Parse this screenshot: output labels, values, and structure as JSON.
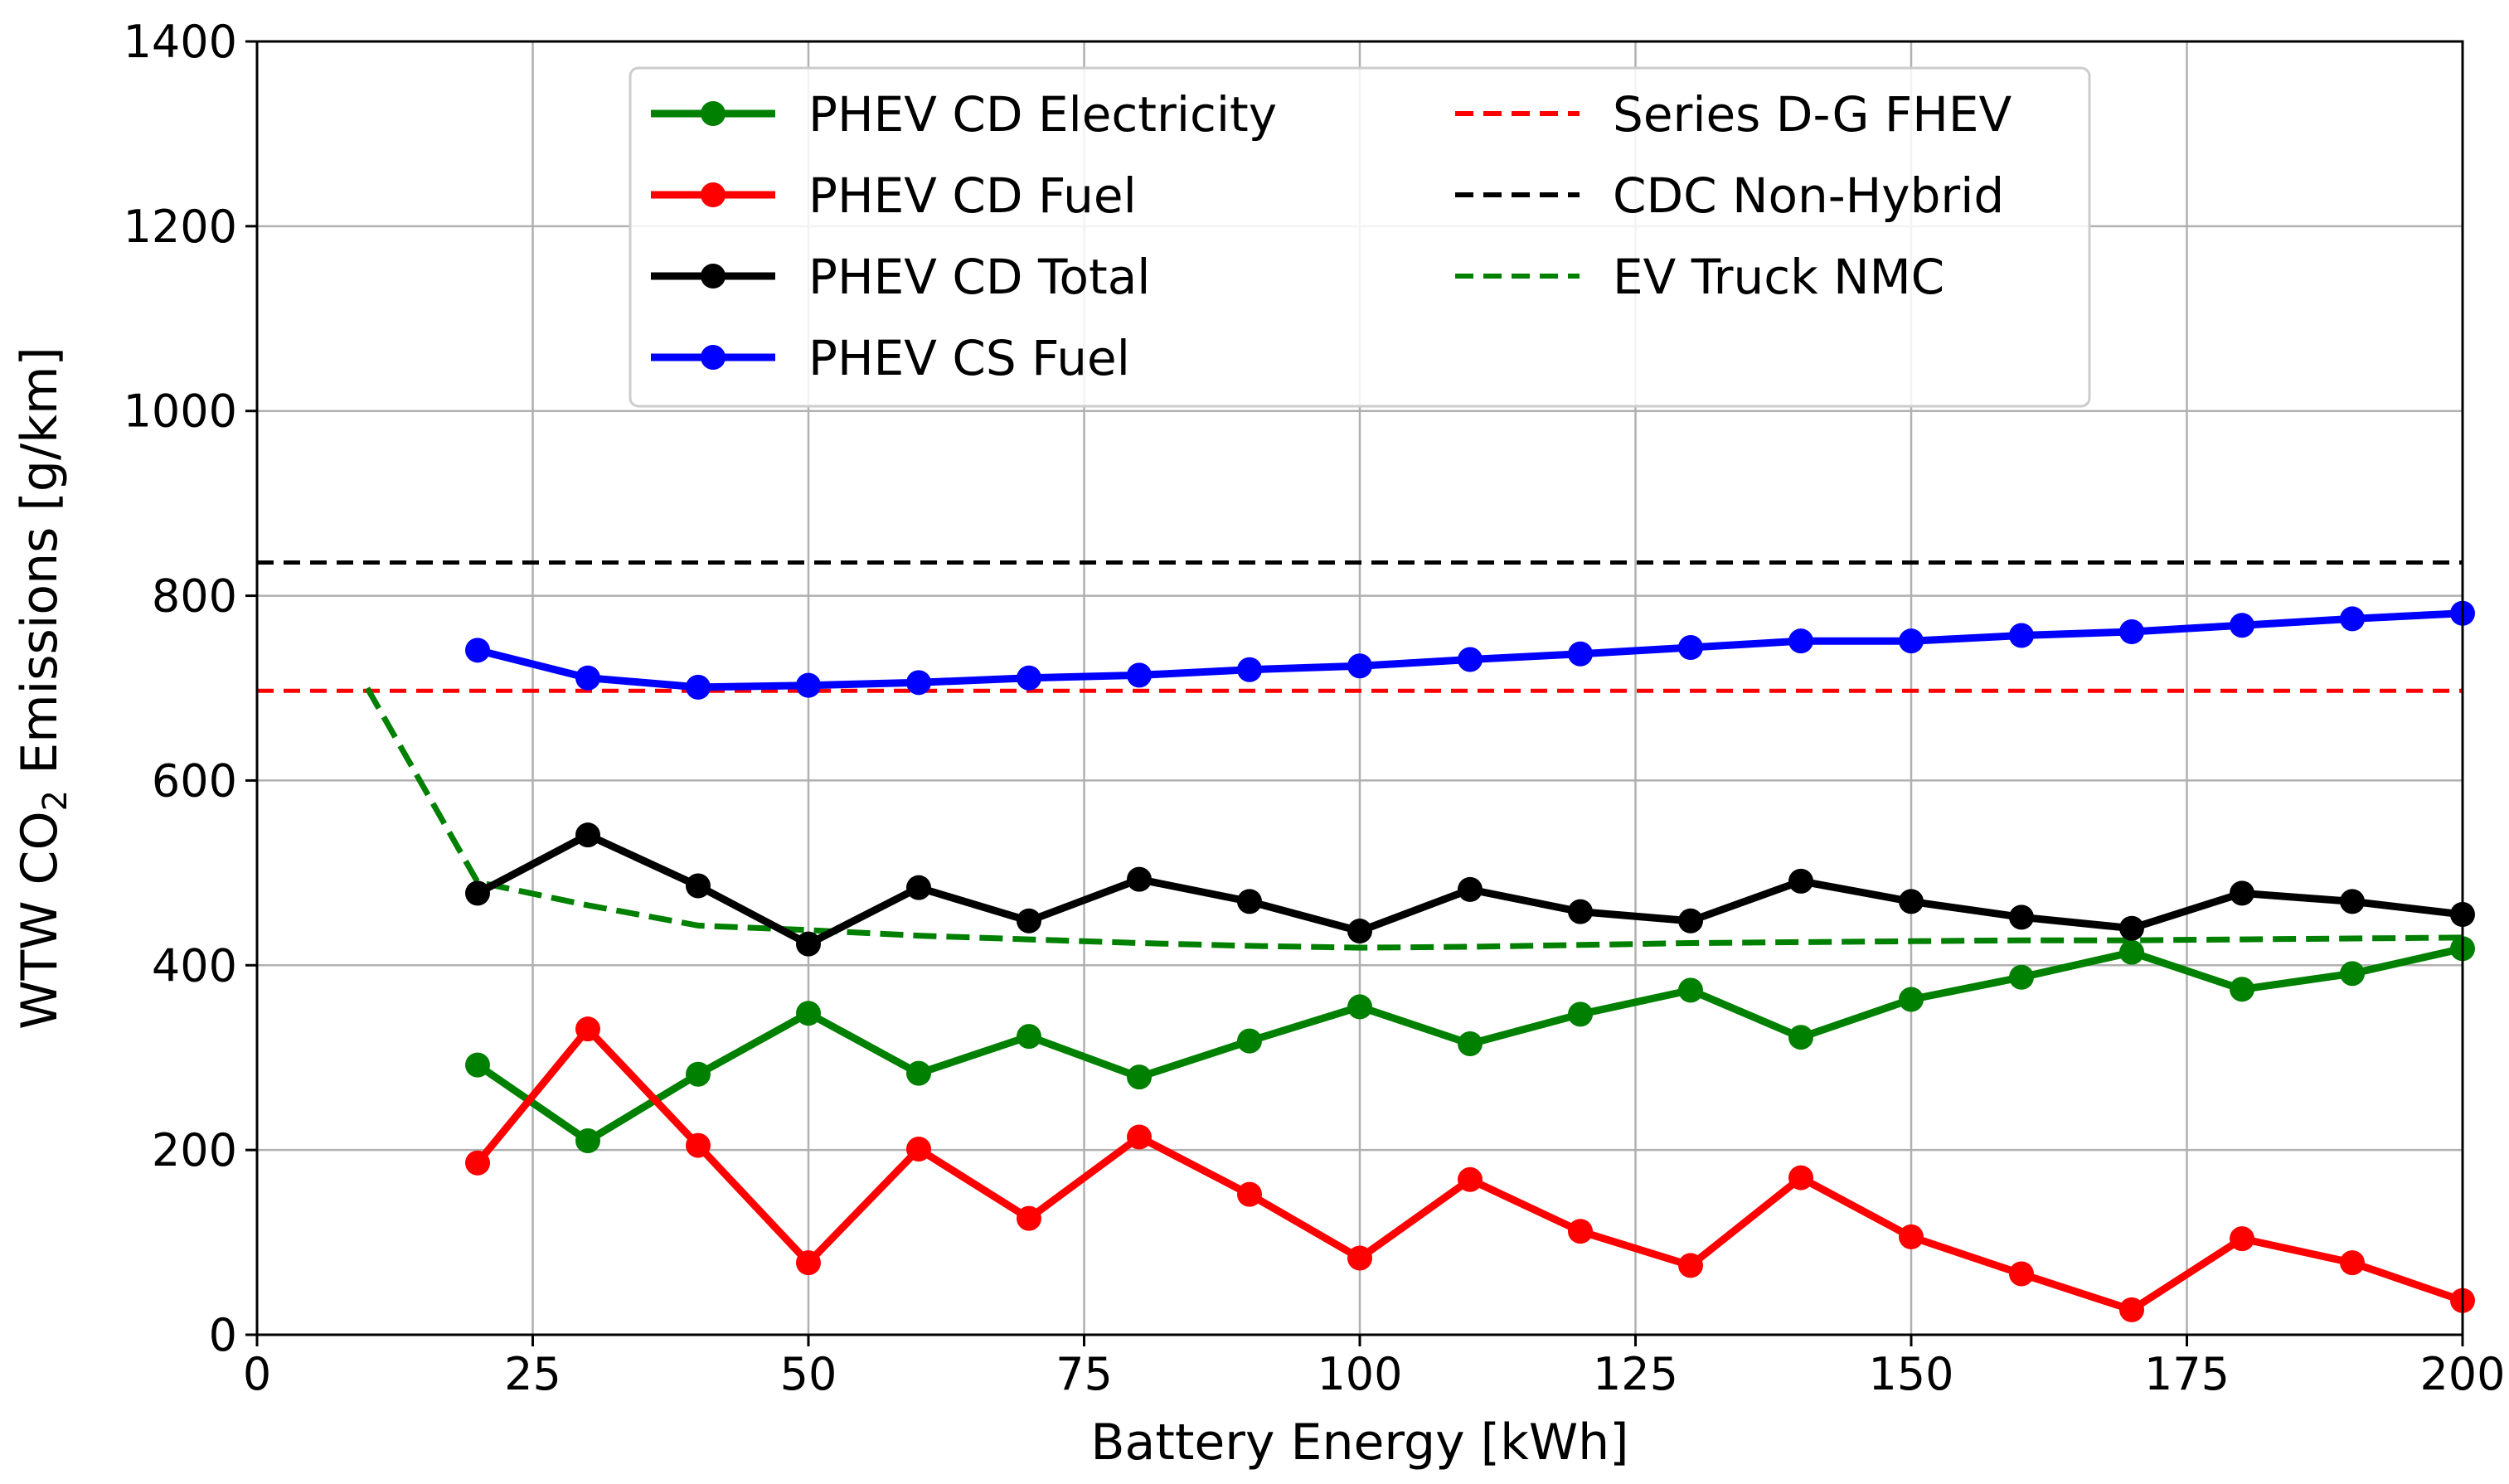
{
  "chart_data": {
    "type": "line",
    "title": "",
    "xlabel": "Battery Energy [kWh]",
    "ylabel": {
      "prefix": "WTW CO",
      "subscript": "2",
      "suffix": " Emissions [g/km]"
    },
    "xlim": [
      0,
      200
    ],
    "ylim": [
      0,
      1400
    ],
    "xticks": [
      0,
      25,
      50,
      75,
      100,
      125,
      150,
      175,
      200
    ],
    "yticks": [
      0,
      200,
      400,
      600,
      800,
      1000,
      1200,
      1400
    ],
    "grid": true,
    "legend_position": "upper center",
    "series": [
      {
        "name": "PHEV CD Electricity",
        "color": "#008000",
        "style": "solid-marker",
        "x": [
          20,
          30,
          40,
          50,
          60,
          70,
          80,
          90,
          100,
          110,
          120,
          130,
          140,
          150,
          160,
          170,
          180,
          190,
          200
        ],
        "y": [
          292,
          210,
          282,
          348,
          283,
          323,
          279,
          318,
          355,
          315,
          347,
          373,
          322,
          363,
          387,
          414,
          374,
          391,
          418
        ]
      },
      {
        "name": "PHEV CD Fuel",
        "color": "#ff0000",
        "style": "solid-marker",
        "x": [
          20,
          30,
          40,
          50,
          60,
          70,
          80,
          90,
          100,
          110,
          120,
          130,
          140,
          150,
          160,
          170,
          180,
          190,
          200
        ],
        "y": [
          186,
          331,
          205,
          78,
          201,
          126,
          214,
          152,
          83,
          168,
          112,
          75,
          170,
          106,
          66,
          27,
          104,
          78,
          37
        ]
      },
      {
        "name": "PHEV CD Total",
        "color": "#000000",
        "style": "solid-marker",
        "x": [
          20,
          30,
          40,
          50,
          60,
          70,
          80,
          90,
          100,
          110,
          120,
          130,
          140,
          150,
          160,
          170,
          180,
          190,
          200
        ],
        "y": [
          478,
          541,
          486,
          423,
          484,
          448,
          493,
          469,
          437,
          482,
          458,
          448,
          491,
          469,
          452,
          440,
          478,
          469,
          455
        ]
      },
      {
        "name": "PHEV CS Fuel",
        "color": "#0000ff",
        "style": "solid-marker",
        "x": [
          20,
          30,
          40,
          50,
          60,
          70,
          80,
          90,
          100,
          110,
          120,
          130,
          140,
          150,
          160,
          170,
          180,
          190,
          200
        ],
        "y": [
          741,
          711,
          701,
          703,
          706,
          711,
          714,
          720,
          724,
          731,
          737,
          744,
          751,
          751,
          757,
          761,
          768,
          775,
          781
        ]
      },
      {
        "name": "Series D-G FHEV",
        "color": "#ff0000",
        "style": "dashed",
        "x": [
          0,
          200
        ],
        "y": [
          697,
          697
        ]
      },
      {
        "name": "CDC Non-Hybrid",
        "color": "#000000",
        "style": "dashed",
        "x": [
          0,
          200
        ],
        "y": [
          836,
          836
        ]
      },
      {
        "name": "EV Truck NMC",
        "color": "#008000",
        "style": "dashed",
        "x": [
          10,
          20,
          30,
          40,
          50,
          60,
          70,
          80,
          90,
          100,
          110,
          120,
          130,
          140,
          150,
          160,
          170,
          180,
          190,
          200
        ],
        "y": [
          700,
          490,
          465,
          443,
          438,
          432,
          428,
          424,
          421,
          419,
          420,
          422,
          424,
          425,
          426,
          427,
          427,
          428,
          429,
          430
        ]
      }
    ]
  }
}
